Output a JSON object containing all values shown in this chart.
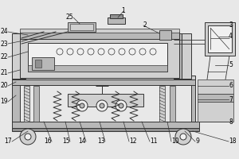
{
  "bg_color": "#e8e8e8",
  "line_color": "#333333",
  "fill_light": "#d0d0d0",
  "fill_mid": "#b8b8b8",
  "fill_dark": "#909090",
  "fill_white": "#f0f0f0",
  "lw": 0.7,
  "fig_w": 3.0,
  "fig_h": 2.0,
  "dpi": 100
}
